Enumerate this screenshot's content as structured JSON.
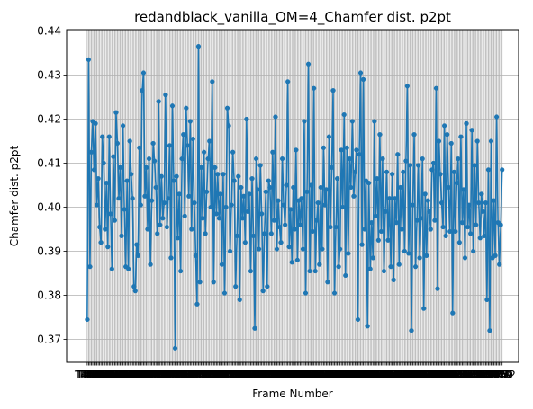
{
  "chart_data": {
    "type": "line",
    "title": "redandblack_vanilla_OM=4_Chamfer dist. p2pt",
    "xlabel": "Frame Number",
    "ylabel": "Chamfer dist. p2pt",
    "x_start": 1450,
    "x_end": 1749,
    "xlim": [
      1435,
      1764
    ],
    "ylim": [
      0.3648,
      0.4403
    ],
    "yticks": [
      0.37,
      0.38,
      0.39,
      0.4,
      0.41,
      0.42,
      0.43,
      0.44
    ],
    "grid": true,
    "color": "#1f77b4",
    "series": [
      {
        "values": [
          0.3745,
          0.4335,
          0.3865,
          0.4125,
          0.4195,
          0.4085,
          0.419,
          0.4005,
          0.4065,
          0.3955,
          0.392,
          0.416,
          0.41,
          0.395,
          0.4055,
          0.391,
          0.416,
          0.3985,
          0.386,
          0.4115,
          0.397,
          0.4215,
          0.4145,
          0.402,
          0.409,
          0.3935,
          0.4185,
          0.3995,
          0.3865,
          0.406,
          0.386,
          0.415,
          0.4075,
          0.402,
          0.382,
          0.381,
          0.3915,
          0.389,
          0.4135,
          0.4005,
          0.4265,
          0.4305,
          0.4025,
          0.409,
          0.395,
          0.411,
          0.387,
          0.4015,
          0.4145,
          0.4105,
          0.4045,
          0.394,
          0.424,
          0.396,
          0.407,
          0.3975,
          0.401,
          0.4255,
          0.3955,
          0.402,
          0.414,
          0.3885,
          0.423,
          0.406,
          0.368,
          0.407,
          0.393,
          0.403,
          0.3855,
          0.411,
          0.4165,
          0.398,
          0.4225,
          0.414,
          0.4025,
          0.4195,
          0.395,
          0.4155,
          0.401,
          0.389,
          0.378,
          0.4365,
          0.383,
          0.409,
          0.3975,
          0.4125,
          0.394,
          0.4035,
          0.411,
          0.415,
          0.4,
          0.4285,
          0.383,
          0.409,
          0.3985,
          0.4075,
          0.3975,
          0.403,
          0.387,
          0.4075,
          0.3805,
          0.4,
          0.4225,
          0.4185,
          0.39,
          0.4005,
          0.4125,
          0.406,
          0.382,
          0.3935,
          0.407,
          0.379,
          0.4045,
          0.3975,
          0.4025,
          0.392,
          0.42,
          0.399,
          0.403,
          0.3855,
          0.4065,
          0.3935,
          0.3725,
          0.411,
          0.404,
          0.3905,
          0.4095,
          0.3985,
          0.381,
          0.394,
          0.4035,
          0.382,
          0.406,
          0.4045,
          0.394,
          0.4125,
          0.397,
          0.4205,
          0.3905,
          0.4015,
          0.3955,
          0.392,
          0.411,
          0.4005,
          0.396,
          0.405,
          0.4285,
          0.391,
          0.3995,
          0.3875,
          0.4045,
          0.395,
          0.413,
          0.388,
          0.4015,
          0.396,
          0.402,
          0.3905,
          0.4195,
          0.3805,
          0.4035,
          0.4325,
          0.3855,
          0.405,
          0.3945,
          0.427,
          0.3855,
          0.397,
          0.401,
          0.387,
          0.4045,
          0.3905,
          0.4135,
          0.4005,
          0.404,
          0.383,
          0.416,
          0.3955,
          0.409,
          0.4265,
          0.3805,
          0.3955,
          0.4065,
          0.3865,
          0.3905,
          0.413,
          0.4,
          0.421,
          0.3845,
          0.4135,
          0.3895,
          0.411,
          0.4045,
          0.4195,
          0.4025,
          0.408,
          0.413,
          0.3745,
          0.412,
          0.4305,
          0.3915,
          0.429,
          0.395,
          0.406,
          0.373,
          0.4055,
          0.386,
          0.3965,
          0.3885,
          0.4195,
          0.398,
          0.4065,
          0.3925,
          0.4165,
          0.3945,
          0.411,
          0.3855,
          0.399,
          0.408,
          0.3925,
          0.402,
          0.3865,
          0.4075,
          0.3835,
          0.402,
          0.3965,
          0.412,
          0.387,
          0.4045,
          0.395,
          0.408,
          0.39,
          0.4105,
          0.4275,
          0.3895,
          0.4095,
          0.372,
          0.4005,
          0.4165,
          0.3865,
          0.397,
          0.4095,
          0.3885,
          0.3975,
          0.411,
          0.377,
          0.403,
          0.389,
          0.4015,
          0.399,
          0.395,
          0.4085,
          0.41,
          0.397,
          0.427,
          0.3815,
          0.415,
          0.4075,
          0.401,
          0.3955,
          0.4185,
          0.3935,
          0.4165,
          0.4045,
          0.3945,
          0.4145,
          0.376,
          0.408,
          0.3945,
          0.4055,
          0.411,
          0.392,
          0.416,
          0.3965,
          0.404,
          0.3885,
          0.419,
          0.3955,
          0.4005,
          0.394,
          0.4175,
          0.39,
          0.4095,
          0.396,
          0.415,
          0.401,
          0.393,
          0.403,
          0.399,
          0.3935,
          0.401,
          0.379,
          0.4085,
          0.372,
          0.415,
          0.3885,
          0.4015,
          0.389,
          0.4205,
          0.3965,
          0.387,
          0.396,
          0.4085
        ]
      }
    ]
  }
}
